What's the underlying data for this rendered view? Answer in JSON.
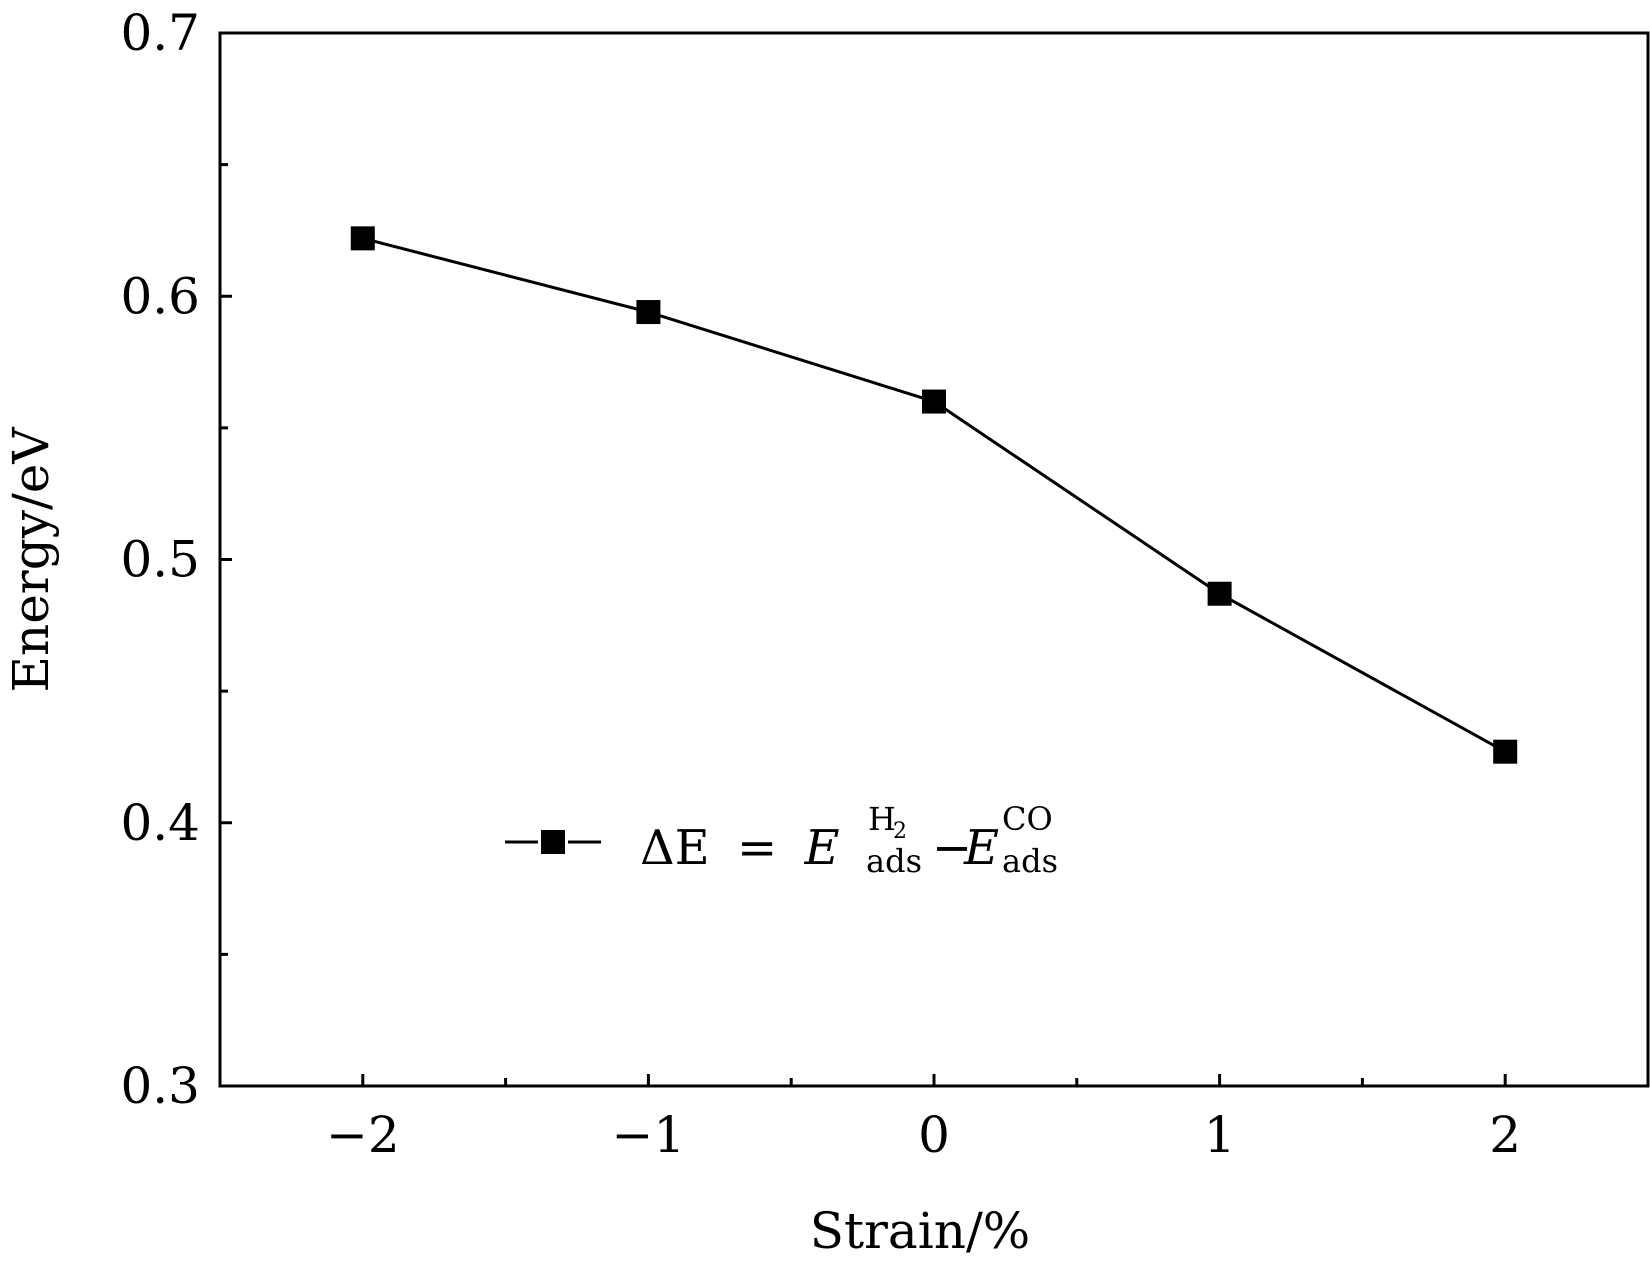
{
  "chart_data": {
    "type": "line",
    "title": "",
    "xlabel": "Strain/%",
    "ylabel": "Energy/eV",
    "x": [
      -2,
      -1,
      0,
      1,
      2
    ],
    "xlim": [
      -2.5,
      2.5
    ],
    "ylim": [
      0.3,
      0.7
    ],
    "x_ticks": [
      -2,
      -1,
      0,
      1,
      2
    ],
    "x_tick_labels": [
      "−2",
      "−1",
      "0",
      "1",
      "2"
    ],
    "y_ticks": [
      0.3,
      0.4,
      0.5,
      0.6,
      0.7
    ],
    "y_tick_labels": [
      "0.3",
      "0.4",
      "0.5",
      "0.6",
      "0.7"
    ],
    "grid": false,
    "legend_position": "center-left",
    "series": [
      {
        "name": "ΔE = E_ads^H2 − E_ads^CO",
        "values": [
          0.622,
          0.594,
          0.56,
          0.487,
          0.427
        ],
        "marker": "square",
        "color": "#000000"
      }
    ],
    "legend": {
      "delta_e": "ΔE",
      "equals": "=",
      "minus": "−",
      "e": "E",
      "sub": "ads",
      "sup1_h": "H",
      "sup1_sub": "2",
      "sup2": "CO"
    }
  }
}
